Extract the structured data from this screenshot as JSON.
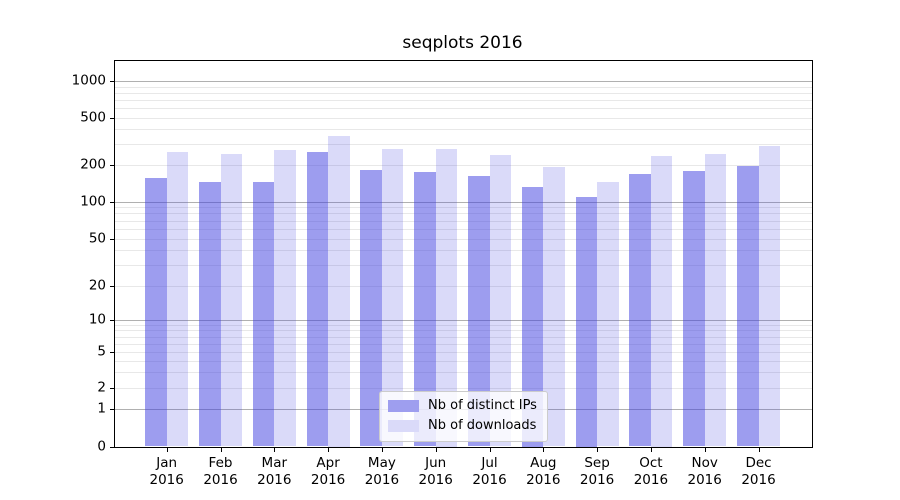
{
  "title": "seqplots 2016",
  "chart_data": {
    "type": "bar",
    "title": "seqplots 2016",
    "categories": [
      "Jan",
      "Feb",
      "Mar",
      "Apr",
      "May",
      "Jun",
      "Jul",
      "Aug",
      "Sep",
      "Oct",
      "Nov",
      "Dec"
    ],
    "year_label": "2016",
    "series": [
      {
        "name": "Nb of distinct IPs",
        "values": [
          155,
          144,
          145,
          255,
          183,
          174,
          161,
          133,
          110,
          169,
          177,
          195
        ]
      },
      {
        "name": "Nb of downloads",
        "values": [
          258,
          248,
          268,
          353,
          273,
          275,
          243,
          192,
          146,
          240,
          248,
          290
        ]
      }
    ],
    "yticks": [
      1000,
      500,
      200,
      100,
      50,
      20,
      10,
      5,
      2,
      1,
      0
    ],
    "ytick_labels": [
      "1000",
      "500",
      "200",
      "100",
      "50",
      "20",
      "10",
      "5",
      "2",
      "1",
      "0"
    ],
    "scale": "symlog",
    "ylim": [
      0,
      1450
    ],
    "grid": true,
    "legend_position": "lower center",
    "xlabel": "",
    "ylabel": ""
  },
  "colors": {
    "bar_ips": "rgba(60,60,224,0.5)",
    "bar_downloads": "rgba(60,60,224,0.19)",
    "legend_swatch_ips": "#9e9eef",
    "legend_swatch_downloads": "#dadaf9",
    "grid_major": "#b0b0b0",
    "grid_minor": "#e8e8e8",
    "spine": "#000000",
    "text": "#000000"
  }
}
